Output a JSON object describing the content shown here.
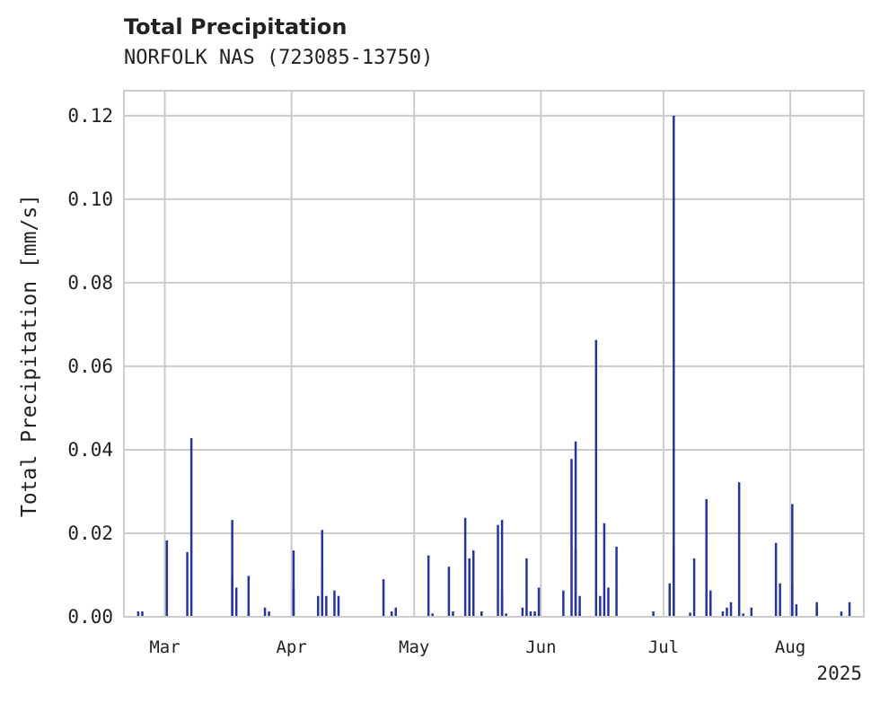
{
  "chart_data": {
    "type": "bar",
    "title": "Total Precipitation",
    "subtitle": "NORFOLK NAS (723085-13750)",
    "ylabel": "Total Precipitation [mm/s]",
    "xlabel": "",
    "year_label": "2025",
    "x_domain": [
      "2025-02-19",
      "2025-08-19"
    ],
    "ylim": [
      0,
      0.126
    ],
    "y_ticks": [
      "0.00",
      "0.02",
      "0.04",
      "0.06",
      "0.08",
      "0.10",
      "0.12"
    ],
    "x_ticks": [
      {
        "date": "2025-03-01",
        "label": "Mar"
      },
      {
        "date": "2025-04-01",
        "label": "Apr"
      },
      {
        "date": "2025-05-01",
        "label": "May"
      },
      {
        "date": "2025-06-01",
        "label": "Jun"
      },
      {
        "date": "2025-07-01",
        "label": "Jul"
      },
      {
        "date": "2025-08-01",
        "label": "Aug"
      }
    ],
    "grid": true,
    "bar_color": "#26359a",
    "grid_color": "#cccccc",
    "points": [
      [
        "2025-02-22",
        0.0013
      ],
      [
        "2025-02-23",
        0.0013
      ],
      [
        "2025-03-01",
        0.0183
      ],
      [
        "2025-03-06",
        0.0155
      ],
      [
        "2025-03-07",
        0.0428
      ],
      [
        "2025-03-17",
        0.0098
      ],
      [
        "2025-03-17",
        0.0232
      ],
      [
        "2025-03-18",
        0.007
      ],
      [
        "2025-03-21",
        0.0098
      ],
      [
        "2025-03-21",
        0.001
      ],
      [
        "2025-03-25",
        0.0022
      ],
      [
        "2025-03-26",
        0.0013
      ],
      [
        "2025-04-01",
        0.007
      ],
      [
        "2025-04-01",
        0.0159
      ],
      [
        "2025-04-07",
        0.005
      ],
      [
        "2025-04-08",
        0.012
      ],
      [
        "2025-04-08",
        0.0208
      ],
      [
        "2025-04-09",
        0.005
      ],
      [
        "2025-04-11",
        0.0063
      ],
      [
        "2025-04-12",
        0.005
      ],
      [
        "2025-04-23",
        0.009
      ],
      [
        "2025-04-25",
        0.0013
      ],
      [
        "2025-04-26",
        0.0022
      ],
      [
        "2025-05-04",
        0.0147
      ],
      [
        "2025-05-05",
        0.0008
      ],
      [
        "2025-05-09",
        0.012
      ],
      [
        "2025-05-10",
        0.0013
      ],
      [
        "2025-05-13",
        0.0237
      ],
      [
        "2025-05-14",
        0.014
      ],
      [
        "2025-05-15",
        0.0159
      ],
      [
        "2025-05-17",
        0.0013
      ],
      [
        "2025-05-21",
        0.022
      ],
      [
        "2025-05-22",
        0.0232
      ],
      [
        "2025-05-22",
        0.0063
      ],
      [
        "2025-05-23",
        0.0008
      ],
      [
        "2025-05-27",
        0.0022
      ],
      [
        "2025-05-28",
        0.014
      ],
      [
        "2025-05-29",
        0.0013
      ],
      [
        "2025-05-30",
        0.0013
      ],
      [
        "2025-05-31",
        0.007
      ],
      [
        "2025-06-06",
        0.0063
      ],
      [
        "2025-06-08",
        0.0378
      ],
      [
        "2025-06-09",
        0.042
      ],
      [
        "2025-06-09",
        0.016
      ],
      [
        "2025-06-10",
        0.005
      ],
      [
        "2025-06-10",
        0.0013
      ],
      [
        "2025-06-14",
        0.0663
      ],
      [
        "2025-06-15",
        0.005
      ],
      [
        "2025-06-16",
        0.0224
      ],
      [
        "2025-06-17",
        0.007
      ],
      [
        "2025-06-19",
        0.0168
      ],
      [
        "2025-06-28",
        0.0013
      ],
      [
        "2025-07-02",
        0.008
      ],
      [
        "2025-07-03",
        0.12
      ],
      [
        "2025-07-03",
        0.0168
      ],
      [
        "2025-07-07",
        0.001
      ],
      [
        "2025-07-08",
        0.014
      ],
      [
        "2025-07-11",
        0.003
      ],
      [
        "2025-07-11",
        0.0282
      ],
      [
        "2025-07-12",
        0.0063
      ],
      [
        "2025-07-15",
        0.0013
      ],
      [
        "2025-07-16",
        0.0022
      ],
      [
        "2025-07-17",
        0.0035
      ],
      [
        "2025-07-19",
        0.0322
      ],
      [
        "2025-07-20",
        0.0008
      ],
      [
        "2025-07-22",
        0.0022
      ],
      [
        "2025-07-28",
        0.0177
      ],
      [
        "2025-07-29",
        0.008
      ],
      [
        "2025-08-01",
        0.027
      ],
      [
        "2025-08-01",
        0.008
      ],
      [
        "2025-08-02",
        0.003
      ],
      [
        "2025-08-07",
        0.0022
      ],
      [
        "2025-08-07",
        0.0035
      ],
      [
        "2025-08-13",
        0.0013
      ],
      [
        "2025-08-15",
        0.0035
      ]
    ]
  }
}
